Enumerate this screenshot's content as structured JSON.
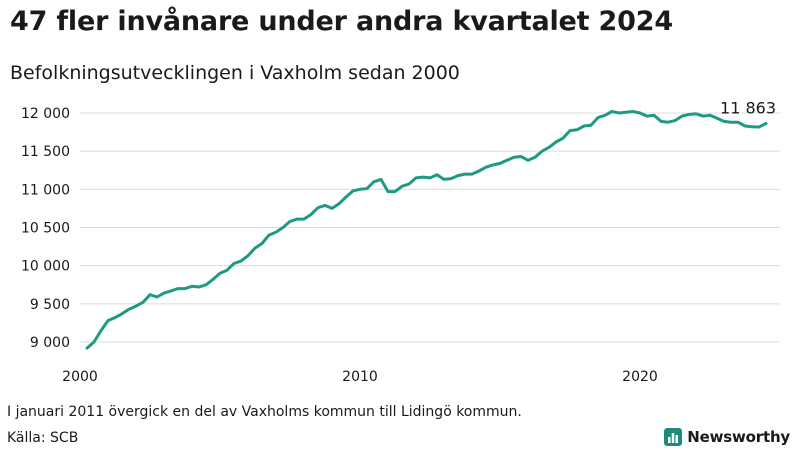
{
  "title": "47 fler invånare under andra kvartalet 2024",
  "subtitle": "Befolkningsutvecklingen i Vaxholm sedan 2000",
  "note": "I januari 2011 övergick en del av Vaxholms kommun till Lidingö kommun.",
  "source": "Källa: SCB",
  "brand": {
    "name": "Newsworthy",
    "color": "#1f8a7a"
  },
  "colors": {
    "line": "#1f9a82",
    "grid": "#dcdcdc",
    "text": "#1a1a1a"
  },
  "chart_data": {
    "type": "line",
    "title": "Befolkningsutvecklingen i Vaxholm sedan 2000",
    "xlabel": "",
    "ylabel": "",
    "xlim": [
      2000,
      2024.5
    ],
    "ylim": [
      8880,
      12100
    ],
    "grid": true,
    "x_ticks": [
      2000,
      2010,
      2020
    ],
    "x_tick_labels": [
      "2000",
      "2010",
      "2020"
    ],
    "y_ticks": [
      9000,
      9500,
      10000,
      10500,
      11000,
      11500,
      12000
    ],
    "y_tick_labels": [
      "9 000",
      "9 500",
      "10 000",
      "10 500",
      "11 000",
      "11 500",
      "12 000"
    ],
    "end_label": "11 863",
    "series": [
      {
        "x": [
          2000.25,
          2000.5,
          2000.75,
          2001.0,
          2001.25,
          2001.5,
          2001.75,
          2002.0,
          2002.25,
          2002.5,
          2002.75,
          2003.0,
          2003.25,
          2003.5,
          2003.75,
          2004.0,
          2004.25,
          2004.5,
          2004.75,
          2005.0,
          2005.25,
          2005.5,
          2005.75,
          2006.0,
          2006.25,
          2006.5,
          2006.75,
          2007.0,
          2007.25,
          2007.5,
          2007.75,
          2008.0,
          2008.25,
          2008.5,
          2008.75,
          2009.0,
          2009.25,
          2009.5,
          2009.75,
          2010.0,
          2010.25,
          2010.5,
          2010.75,
          2011.0,
          2011.25,
          2011.5,
          2011.75,
          2012.0,
          2012.25,
          2012.5,
          2012.75,
          2013.0,
          2013.25,
          2013.5,
          2013.75,
          2014.0,
          2014.25,
          2014.5,
          2014.75,
          2015.0,
          2015.25,
          2015.5,
          2015.75,
          2016.0,
          2016.25,
          2016.5,
          2016.75,
          2017.0,
          2017.25,
          2017.5,
          2017.75,
          2018.0,
          2018.25,
          2018.5,
          2018.75,
          2019.0,
          2019.25,
          2019.5,
          2019.75,
          2020.0,
          2020.25,
          2020.5,
          2020.75,
          2021.0,
          2021.25,
          2021.5,
          2021.75,
          2022.0,
          2022.25,
          2022.5,
          2022.75,
          2023.0,
          2023.25,
          2023.5,
          2023.75,
          2024.0,
          2024.25,
          2024.5
        ],
        "values": [
          8920,
          9000,
          9150,
          9280,
          9320,
          9370,
          9430,
          9470,
          9520,
          9620,
          9590,
          9640,
          9670,
          9700,
          9700,
          9730,
          9720,
          9750,
          9820,
          9900,
          9940,
          10030,
          10060,
          10130,
          10230,
          10290,
          10400,
          10440,
          10500,
          10580,
          10610,
          10610,
          10670,
          10760,
          10790,
          10750,
          10810,
          10900,
          10980,
          11000,
          11010,
          11100,
          11130,
          10970,
          10970,
          11040,
          11070,
          11150,
          11160,
          11150,
          11190,
          11130,
          11140,
          11180,
          11200,
          11200,
          11240,
          11290,
          11320,
          11340,
          11380,
          11420,
          11430,
          11380,
          11420,
          11500,
          11550,
          11620,
          11670,
          11770,
          11780,
          11830,
          11840,
          11940,
          11970,
          12020,
          12000,
          12010,
          12020,
          12000,
          11960,
          11970,
          11890,
          11880,
          11900,
          11960,
          11980,
          11990,
          11960,
          11970,
          11930,
          11890,
          11880,
          11880,
          11830,
          11820,
          11816,
          11863
        ]
      }
    ]
  }
}
